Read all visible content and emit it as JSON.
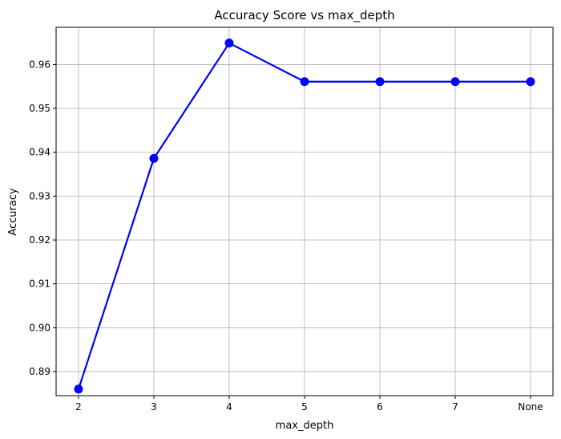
{
  "chart_data": {
    "type": "line",
    "title": "Accuracy Score vs max_depth",
    "xlabel": "max_depth",
    "ylabel": "Accuracy",
    "categories": [
      "2",
      "3",
      "4",
      "5",
      "6",
      "7",
      "None"
    ],
    "series": [
      {
        "values": [
          0.886,
          0.9386,
          0.9649,
          0.9561,
          0.9561,
          0.9561,
          0.9561
        ],
        "color": "#0000ff",
        "marker": "circle"
      }
    ],
    "ylim": [
      0.8845,
      0.9685
    ],
    "yticks": [
      0.89,
      0.9,
      0.91,
      0.92,
      0.93,
      0.94,
      0.95,
      0.96
    ],
    "ytick_labels": [
      "0.89",
      "0.90",
      "0.91",
      "0.92",
      "0.93",
      "0.94",
      "0.95",
      "0.96"
    ],
    "grid": true,
    "colors": {
      "line": "#0000ff",
      "grid": "#b0b0b0"
    }
  }
}
